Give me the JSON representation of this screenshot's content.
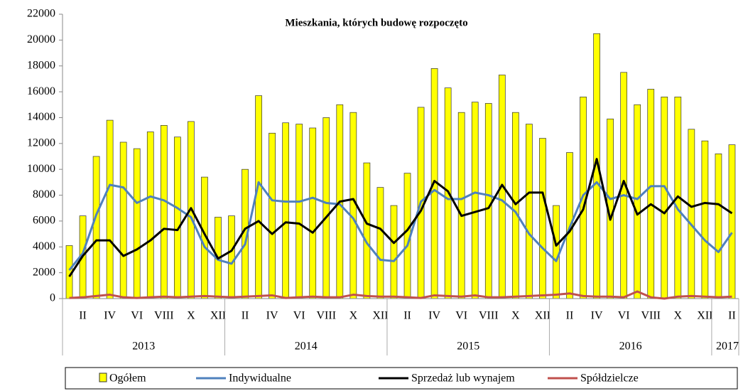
{
  "chart_data": {
    "type": "bar_line",
    "title": "Mieszkania, których budowę rozpoczęto",
    "categories": [
      null,
      "II",
      null,
      "IV",
      null,
      "VI",
      null,
      "VIII",
      null,
      "X",
      null,
      "XII",
      null,
      "II",
      null,
      "IV",
      null,
      "VI",
      null,
      "VIII",
      null,
      "X",
      null,
      "XII",
      null,
      "II",
      null,
      "IV",
      null,
      "VI",
      null,
      "VIII",
      null,
      "X",
      null,
      "XII",
      null,
      "II",
      null,
      "IV",
      null,
      "VI",
      null,
      "VIII",
      null,
      "X",
      null,
      "XII",
      null,
      "II"
    ],
    "years": [
      "2013",
      "2014",
      "2015",
      "2016",
      "2017"
    ],
    "series": [
      {
        "name": "Ogółem",
        "kind": "bar",
        "color": "#ffff00",
        "values": [
          4100,
          6400,
          11000,
          13800,
          12100,
          11600,
          12900,
          13400,
          12500,
          13700,
          9400,
          6300,
          6400,
          10000,
          15700,
          12800,
          13600,
          13500,
          13200,
          14000,
          15000,
          14400,
          10500,
          8600,
          7200,
          9700,
          14800,
          17800,
          16300,
          14400,
          15200,
          15100,
          17300,
          14400,
          13500,
          12400,
          7200,
          11300,
          15600,
          20500,
          13900,
          17500,
          15000,
          16200,
          15600,
          15600,
          13100,
          12200,
          11200,
          11900
        ]
      },
      {
        "name": "Indywidualne",
        "kind": "line",
        "color": "#4f81bd",
        "values": [
          2200,
          3500,
          6500,
          8800,
          8600,
          7400,
          7900,
          7600,
          7000,
          6300,
          4000,
          3000,
          2700,
          4200,
          9000,
          7600,
          7500,
          7500,
          7800,
          7400,
          7300,
          6200,
          4300,
          3000,
          2900,
          4100,
          7500,
          8400,
          7700,
          7700,
          8200,
          8000,
          7600,
          6700,
          5000,
          3900,
          2900,
          5500,
          8000,
          9000,
          7700,
          8000,
          7700,
          8700,
          8700,
          6900,
          5700,
          4500,
          3600,
          5100
        ]
      },
      {
        "name": "Sprzedaż lub wynajem",
        "kind": "line",
        "color": "#000000",
        "values": [
          1700,
          3300,
          4500,
          4500,
          3300,
          3800,
          4500,
          5400,
          5300,
          7000,
          5000,
          3100,
          3700,
          5400,
          6000,
          5000,
          5900,
          5800,
          5100,
          6300,
          7500,
          7700,
          5800,
          5400,
          4300,
          5300,
          6800,
          9100,
          8300,
          6400,
          6700,
          7000,
          8800,
          7300,
          8200,
          8200,
          4100,
          5200,
          6900,
          10800,
          6100,
          9100,
          6500,
          7300,
          6600,
          7900,
          7100,
          7400,
          7300,
          6600
        ]
      },
      {
        "name": "Spółdzielcze",
        "kind": "line",
        "color": "#c0504d",
        "values": [
          50,
          100,
          200,
          300,
          100,
          50,
          100,
          150,
          100,
          150,
          200,
          150,
          100,
          150,
          200,
          250,
          50,
          100,
          150,
          100,
          100,
          300,
          200,
          150,
          150,
          100,
          50,
          250,
          200,
          150,
          250,
          100,
          100,
          150,
          200,
          250,
          300,
          400,
          200,
          150,
          150,
          100,
          550,
          100,
          0,
          150,
          200,
          150,
          100,
          150
        ]
      }
    ],
    "ylim": [
      0,
      22000
    ],
    "yticks": [
      0,
      2000,
      4000,
      6000,
      8000,
      10000,
      12000,
      14000,
      16000,
      18000,
      20000,
      22000
    ]
  }
}
